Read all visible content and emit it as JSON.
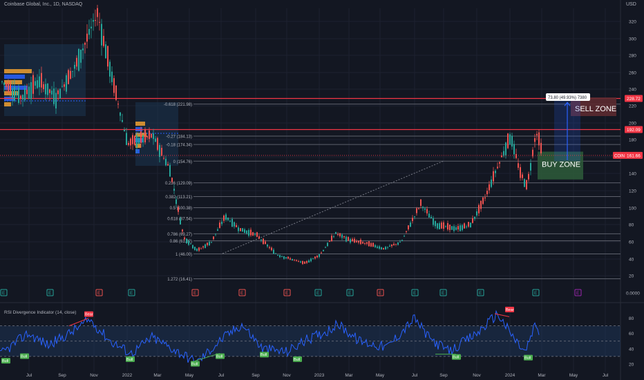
{
  "header": {
    "title": "Coinbase Global, Inc., 1D, NASDAQ",
    "currency": "USD"
  },
  "colors": {
    "background": "#131722",
    "grid": "#1e2230",
    "axis_text": "#b2b5be",
    "candle_up": "#26a69a",
    "candle_down": "#ef5350",
    "fib_line": "#5d606b",
    "red_level": "#f23645",
    "rsi_line": "#2962ff",
    "rsi_band": "#1e3a5f",
    "buy_zone": "#2e5c3a",
    "sell_zone": "#5c2a30",
    "measure": "#2962ff",
    "bull_label": "#4caf50",
    "bear_label": "#f23645",
    "earnings_e": "#26a69a",
    "earnings_future": "#9c27b0"
  },
  "chart_data": [
    {
      "type": "candlestick",
      "x_ticks": [
        "Jul",
        "Sep",
        "Nov",
        "2022",
        "Mar",
        "May",
        "Jul",
        "Sep",
        "Nov",
        "2023",
        "Mar",
        "May",
        "Jul",
        "Sep",
        "Nov",
        "2024",
        "Mar",
        "May",
        "Jul"
      ],
      "y_ticks": [
        20,
        40,
        60,
        80,
        100,
        120,
        140,
        160,
        180,
        200,
        220,
        240,
        260,
        280,
        300,
        320
      ],
      "ylim": [
        0,
        340
      ],
      "y_scale": "log",
      "approx_close_path": [
        [
          "Jun",
          250
        ],
        [
          "Jul",
          230
        ],
        [
          "Aug",
          250
        ],
        [
          "Sep",
          230
        ],
        [
          "Oct",
          270
        ],
        [
          "Nov",
          330
        ],
        [
          "Dec",
          240
        ],
        [
          "2022",
          175
        ],
        [
          "Feb",
          180
        ],
        [
          "Mar",
          185
        ],
        [
          "Apr",
          145
        ],
        [
          "May",
          65
        ],
        [
          "Jun",
          50
        ],
        [
          "Jul",
          60
        ],
        [
          "Aug",
          90
        ],
        [
          "Sep",
          75
        ],
        [
          "Oct",
          68
        ],
        [
          "Nov",
          45
        ],
        [
          "Dec",
          35
        ],
        [
          "2023",
          45
        ],
        [
          "Feb",
          70
        ],
        [
          "Mar",
          62
        ],
        [
          "Apr",
          58
        ],
        [
          "May",
          52
        ],
        [
          "Jun",
          60
        ],
        [
          "Jul",
          105
        ],
        [
          "Aug",
          80
        ],
        [
          "Sep",
          75
        ],
        [
          "Oct",
          80
        ],
        [
          "Nov",
          110
        ],
        [
          "Dec",
          150
        ],
        [
          "2024 early",
          185
        ],
        [
          "Jan",
          140
        ],
        [
          "Feb",
          125
        ],
        [
          "Feb late",
          190
        ],
        [
          "Mar",
          161.66
        ]
      ],
      "last_price_label": "COIN",
      "last_price": "161.66",
      "red_levels": [
        {
          "label": "228.72",
          "value": 228.72
        },
        {
          "label": "192.09",
          "value": 192.09
        }
      ],
      "fib_levels": [
        {
          "label": "-0.618 (221.98)",
          "value": 221.98
        },
        {
          "label": "-0.27 (184.13)",
          "value": 184.13
        },
        {
          "label": "-0.18 (174.34)",
          "value": 174.34
        },
        {
          "label": "0 (154.76)",
          "value": 154.76
        },
        {
          "label": "0.236 (129.09)",
          "value": 129.09
        },
        {
          "label": "0.382 (113.21)",
          "value": 113.21
        },
        {
          "label": "0.5 (100.38)",
          "value": 100.38
        },
        {
          "label": "0.618 (87.54)",
          "value": 87.54
        },
        {
          "label": "0.786 (69.27)",
          "value": 69.27
        },
        {
          "label": "0.86 (61.22)",
          "value": 61.22
        },
        {
          "label": "1 (46.00)",
          "value": 46.0
        },
        {
          "label": "1.272 (16.41)",
          "value": 16.41
        }
      ],
      "measure_label": "73.80 (49.93%) 7380",
      "zones": [
        {
          "label": "SELL ZONE",
          "from": 208,
          "to": 230
        },
        {
          "label": "BUY ZONE",
          "from": 133,
          "to": 166
        }
      ],
      "earnings_markers": [
        "E",
        "E",
        "E",
        "E",
        "E",
        "E",
        "E",
        "E",
        "E",
        "E",
        "E",
        "E",
        "E",
        "E",
        "E"
      ],
      "zero_label": "0.0000"
    },
    {
      "type": "line",
      "title": "RSI Divergence Indicator (14, close)",
      "y_ticks": [
        20,
        40,
        60,
        80
      ],
      "ylim": [
        10,
        95
      ],
      "band": [
        30,
        70
      ],
      "labels": [
        {
          "text": "Bull",
          "value": 28
        },
        {
          "text": "Bull",
          "value": 34
        },
        {
          "text": "Bear",
          "value": 80
        },
        {
          "text": "Bull",
          "value": 30
        },
        {
          "text": "Bull",
          "value": 24
        },
        {
          "text": "Bull",
          "value": 34
        },
        {
          "text": "Bull",
          "value": 36
        },
        {
          "text": "Bull",
          "value": 30
        },
        {
          "text": "Bull",
          "value": 33
        },
        {
          "text": "Bear",
          "value": 86
        },
        {
          "text": "Bull",
          "value": 32
        }
      ]
    }
  ]
}
